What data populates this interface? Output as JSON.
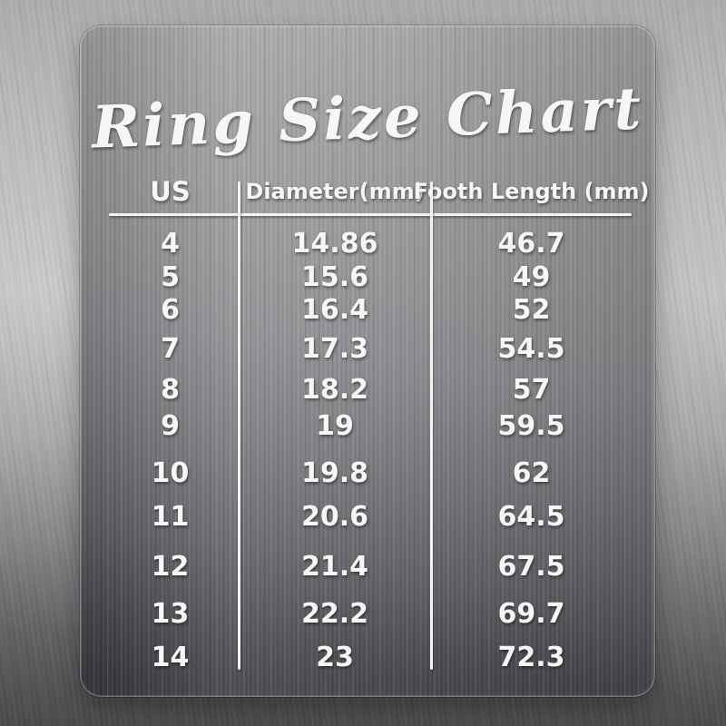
{
  "title": "Ring Size Chart",
  "table": {
    "columns": [
      "US",
      "Diameter(mm)",
      "Footh Length (mm)"
    ],
    "rows": [
      {
        "us": "4",
        "diameter": "14.86",
        "foot_length": "46.7"
      },
      {
        "us": "5",
        "diameter": "15.6",
        "foot_length": "49"
      },
      {
        "us": "6",
        "diameter": "16.4",
        "foot_length": "52"
      },
      {
        "us": "7",
        "diameter": "17.3",
        "foot_length": "54.5"
      },
      {
        "us": "8",
        "diameter": "18.2",
        "foot_length": "57"
      },
      {
        "us": "9",
        "diameter": "19",
        "foot_length": "59.5"
      },
      {
        "us": "10",
        "diameter": "19.8",
        "foot_length": "62"
      },
      {
        "us": "11",
        "diameter": "20.6",
        "foot_length": "64.5"
      },
      {
        "us": "12",
        "diameter": "21.4",
        "foot_length": "67.5"
      },
      {
        "us": "13",
        "diameter": "22.2",
        "foot_length": "69.7"
      },
      {
        "us": "14",
        "diameter": "23",
        "foot_length": "72.3"
      }
    ]
  },
  "colors": {
    "engraving_text": "#f5f6f5",
    "plate_top": "#a6a8a9",
    "plate_bottom": "#333539",
    "background_mid": "#b3b5b4"
  },
  "chart_data": {
    "type": "table",
    "title": "Ring Size Chart",
    "columns": [
      "US",
      "Diameter(mm)",
      "Footh Length (mm)"
    ],
    "rows": [
      [
        4,
        14.86,
        46.7
      ],
      [
        5,
        15.6,
        49
      ],
      [
        6,
        16.4,
        52
      ],
      [
        7,
        17.3,
        54.5
      ],
      [
        8,
        18.2,
        57
      ],
      [
        9,
        19,
        59.5
      ],
      [
        10,
        19.8,
        62
      ],
      [
        11,
        20.6,
        64.5
      ],
      [
        12,
        21.4,
        67.5
      ],
      [
        13,
        22.2,
        69.7
      ],
      [
        14,
        23,
        72.3
      ]
    ]
  }
}
